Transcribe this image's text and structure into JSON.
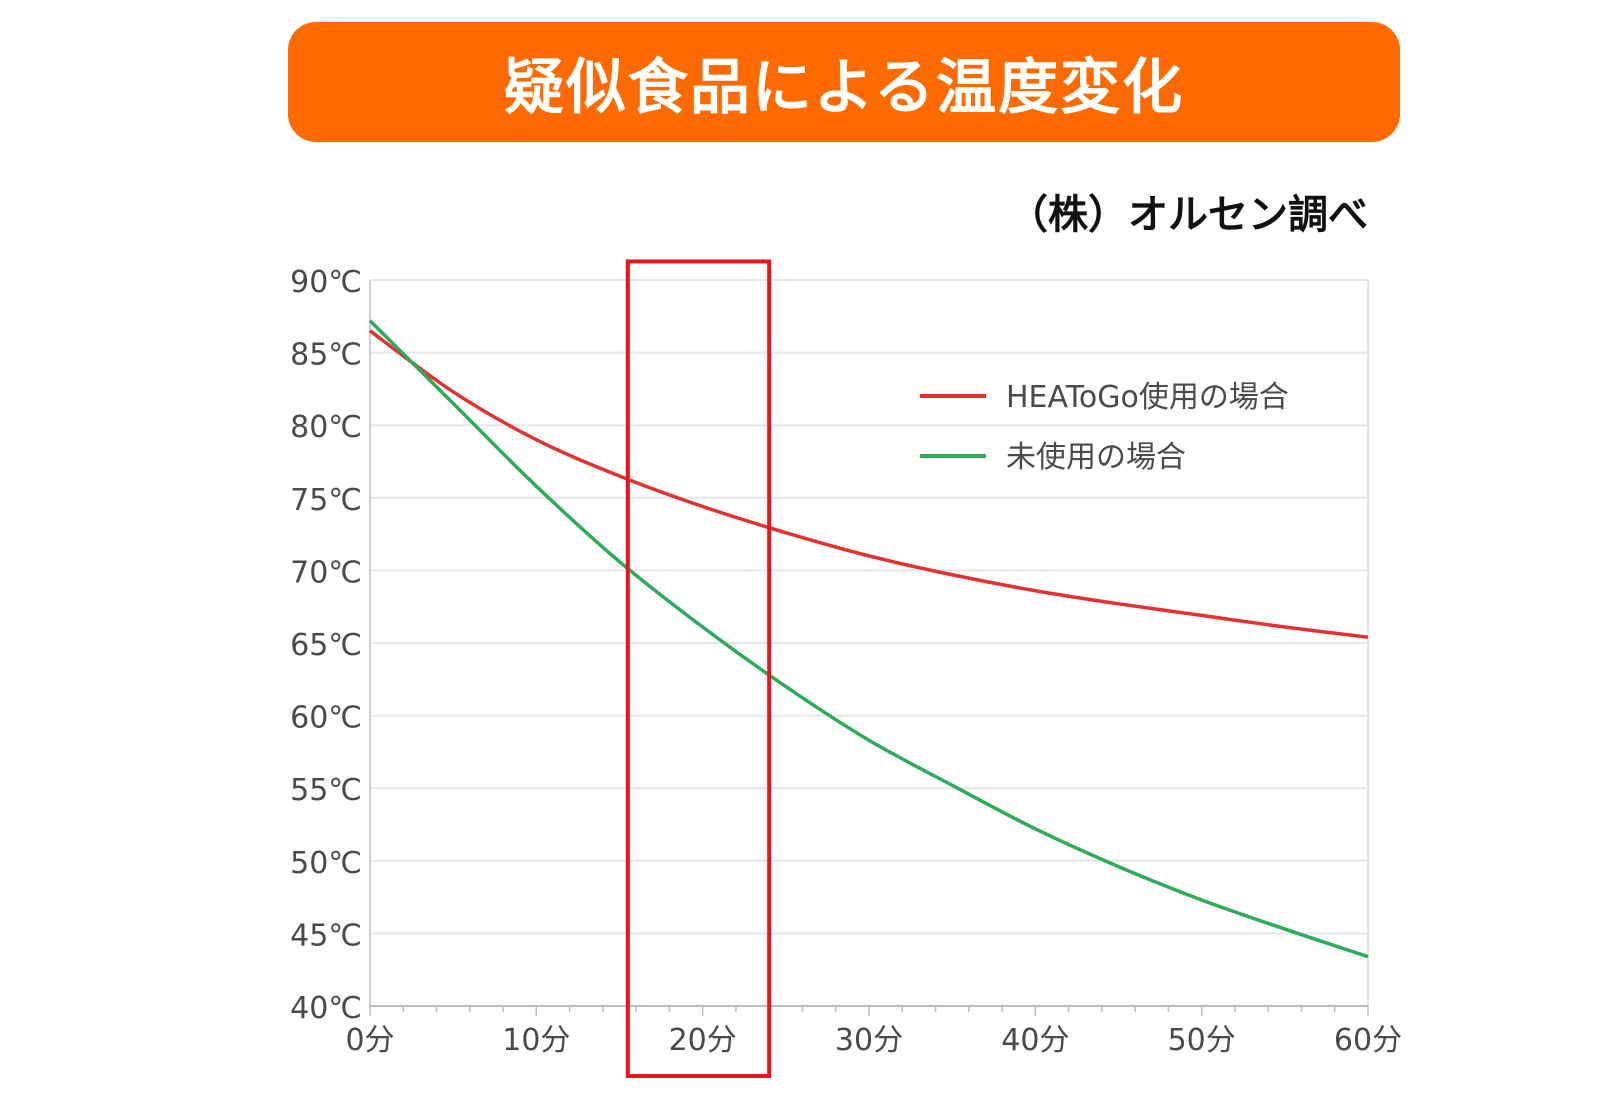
{
  "banner": {
    "title": "疑似食品による温度変化"
  },
  "source_note": "（株）オルセン調べ",
  "colors": {
    "banner": "#ff6a00",
    "heatogo": "#e53030",
    "unused": "#2daa5a",
    "highlight_box": "#e8141e",
    "grid": "#e6e6e6"
  },
  "chart_data": {
    "type": "line",
    "title": "",
    "xlabel": "",
    "ylabel": "",
    "xlim": [
      0,
      60
    ],
    "ylim": [
      40,
      90
    ],
    "grid": true,
    "legend_position": "top-right",
    "x_ticks": [
      {
        "value": 0,
        "label": "0分"
      },
      {
        "value": 10,
        "label": "10分"
      },
      {
        "value": 20,
        "label": "20分"
      },
      {
        "value": 30,
        "label": "30分"
      },
      {
        "value": 40,
        "label": "40分"
      },
      {
        "value": 50,
        "label": "50分"
      },
      {
        "value": 60,
        "label": "60分"
      }
    ],
    "y_ticks": [
      {
        "value": 90,
        "label": "90℃"
      },
      {
        "value": 85,
        "label": "85℃"
      },
      {
        "value": 80,
        "label": "80℃"
      },
      {
        "value": 75,
        "label": "75℃"
      },
      {
        "value": 70,
        "label": "70℃"
      },
      {
        "value": 65,
        "label": "65℃"
      },
      {
        "value": 60,
        "label": "60℃"
      },
      {
        "value": 55,
        "label": "55℃"
      },
      {
        "value": 50,
        "label": "50℃"
      },
      {
        "value": 45,
        "label": "45℃"
      },
      {
        "value": 40,
        "label": "40℃"
      }
    ],
    "series": [
      {
        "name": "HEAToGo使用の場合",
        "color": "#e53030",
        "x": [
          0,
          5,
          10,
          15,
          20,
          25,
          30,
          35,
          40,
          45,
          50,
          55,
          60
        ],
        "y": [
          86.5,
          82.3,
          79.0,
          76.5,
          74.4,
          72.6,
          71.0,
          69.7,
          68.6,
          67.7,
          66.9,
          66.1,
          65.4
        ]
      },
      {
        "name": "未使用の場合",
        "color": "#2daa5a",
        "x": [
          0,
          5,
          10,
          15,
          20,
          25,
          30,
          35,
          40,
          45,
          50,
          55,
          60
        ],
        "y": [
          87.2,
          81.5,
          75.8,
          70.6,
          66.1,
          62.0,
          58.3,
          55.2,
          52.2,
          49.6,
          47.3,
          45.3,
          43.4
        ]
      }
    ],
    "highlight_range": {
      "x_from": 15.5,
      "x_to": 24,
      "y_from": 39,
      "y_to": 91
    }
  }
}
